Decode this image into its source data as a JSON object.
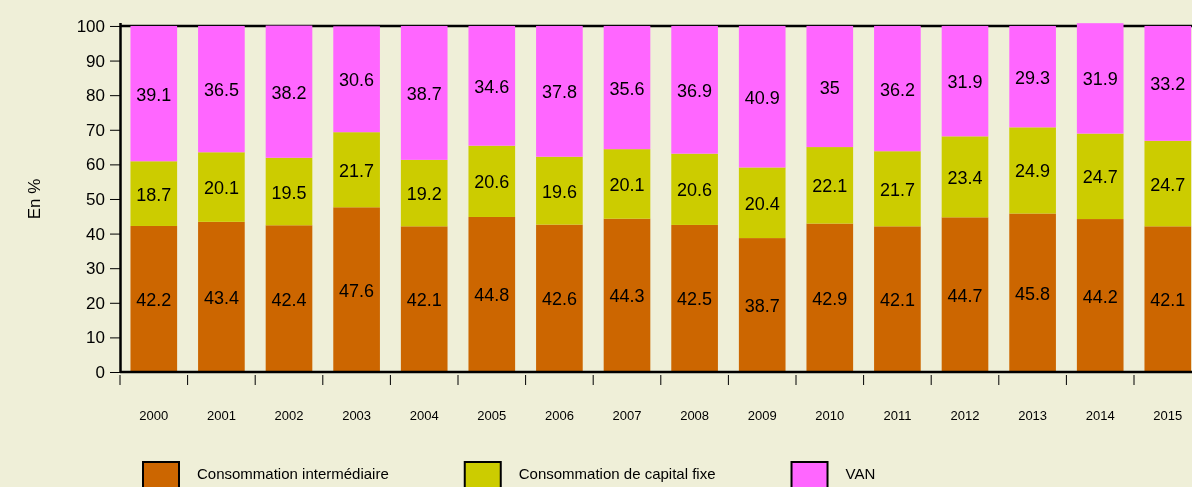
{
  "chart_data": {
    "type": "bar",
    "stacked": true,
    "ylabel": "En %",
    "categories": [
      "2000",
      "2001",
      "2002",
      "2003",
      "2004",
      "2005",
      "2006",
      "2007",
      "2008",
      "2009",
      "2010",
      "2011",
      "2012",
      "2013",
      "2014",
      "2015"
    ],
    "series": [
      {
        "name": "Consommation intermédiaire",
        "color": "#cc6600",
        "values": [
          42.2,
          43.4,
          42.4,
          47.6,
          42.1,
          44.8,
          42.6,
          44.3,
          42.5,
          38.7,
          42.9,
          42.1,
          44.7,
          45.8,
          44.2,
          42.1
        ]
      },
      {
        "name": "Consommation de capital fixe",
        "color": "#cccc00",
        "values": [
          18.7,
          20.1,
          19.5,
          21.7,
          19.2,
          20.6,
          19.6,
          20.1,
          20.6,
          20.4,
          22.1,
          21.7,
          23.4,
          24.9,
          24.7,
          24.7
        ]
      },
      {
        "name": "VAN",
        "color": "#ff66ff",
        "values": [
          39.1,
          36.5,
          38.2,
          30.6,
          38.7,
          34.6,
          37.8,
          35.6,
          36.9,
          40.9,
          35,
          36.2,
          31.9,
          29.3,
          31.9,
          33.2
        ]
      }
    ],
    "ylim": [
      0,
      101
    ],
    "yticks": [
      0,
      10,
      20,
      30,
      40,
      50,
      60,
      70,
      80,
      90,
      100
    ],
    "data_labels": true,
    "legend": "bottom"
  }
}
